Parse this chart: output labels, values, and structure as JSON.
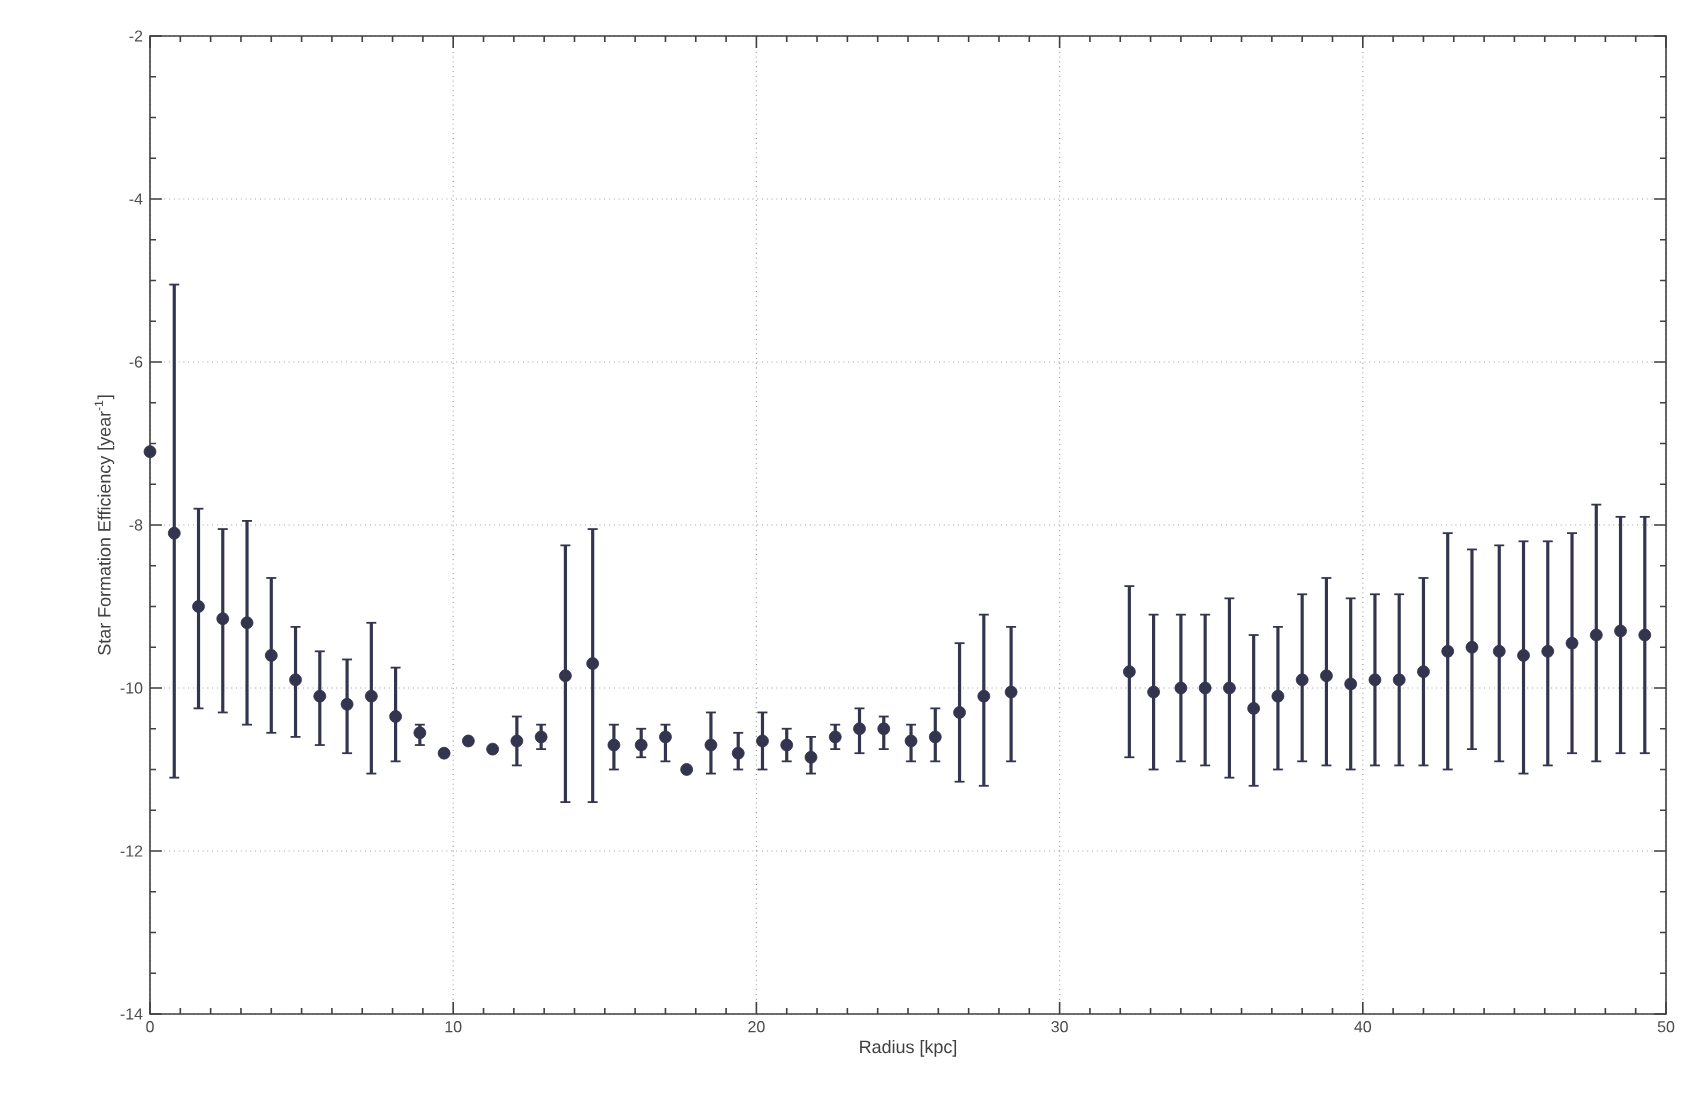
{
  "chart_data": {
    "type": "scatter",
    "xlabel": "Radius   [kpc]",
    "ylabel": "Star Formation Efficiency   [year$^{-1}$]",
    "xlim": [
      0,
      50
    ],
    "xticks": [
      0,
      10,
      20,
      30,
      40,
      50
    ],
    "ylim": [
      -14,
      -2
    ],
    "yticks": [
      -14,
      -12,
      -10,
      -8,
      -6,
      -4,
      -2
    ],
    "grid": true,
    "marker": "circle",
    "series": [
      {
        "color": "#33354f",
        "x": [
          0.0,
          0.8,
          1.6,
          2.4,
          3.2,
          4.0,
          4.8,
          5.6,
          6.5,
          7.3,
          8.1,
          8.9,
          9.7,
          10.5,
          11.3,
          12.1,
          12.9,
          13.7,
          14.6,
          15.3,
          16.2,
          17.0,
          17.7,
          18.5,
          19.4,
          20.2,
          21.0,
          21.8,
          22.6,
          23.4,
          24.2,
          25.1,
          25.9,
          26.7,
          27.5,
          28.4,
          32.3,
          33.1,
          34.0,
          34.8,
          35.6,
          36.4,
          37.2,
          38.0,
          38.8,
          39.6,
          40.4,
          41.2,
          42.0,
          42.8,
          43.6,
          44.5,
          45.3,
          46.1,
          46.9,
          47.7,
          48.5,
          49.3
        ],
        "values": [
          -7.1,
          -8.1,
          -9.0,
          -9.15,
          -9.2,
          -9.6,
          -9.9,
          -10.1,
          -10.2,
          -10.1,
          -10.35,
          -10.55,
          -10.8,
          -10.65,
          -10.75,
          -10.65,
          -10.6,
          -9.85,
          -9.7,
          -10.7,
          -10.7,
          -10.6,
          -11.0,
          -10.7,
          -10.8,
          -10.65,
          -10.7,
          -10.85,
          -10.6,
          -10.5,
          -10.5,
          -10.65,
          -10.6,
          -10.3,
          -10.1,
          -10.05,
          -9.8,
          -10.05,
          -10.0,
          -10.0,
          -10.0,
          -10.25,
          -10.1,
          -9.9,
          -9.85,
          -9.95,
          -9.9,
          -9.9,
          -9.8,
          -9.55,
          -9.5,
          -9.55,
          -9.6,
          -9.55,
          -9.45,
          -9.35,
          -9.3,
          -9.35
        ],
        "errors": [
          null,
          [
            -11.1,
            -5.05
          ],
          [
            -10.25,
            -7.8
          ],
          [
            -10.3,
            -8.05
          ],
          [
            -10.45,
            -7.95
          ],
          [
            -10.55,
            -8.65
          ],
          [
            -10.6,
            -9.25
          ],
          [
            -10.7,
            -9.55
          ],
          [
            -10.8,
            -9.65
          ],
          [
            -11.05,
            -9.2
          ],
          [
            -10.9,
            -9.75
          ],
          [
            -10.7,
            -10.45
          ],
          null,
          null,
          null,
          [
            -10.95,
            -10.35
          ],
          [
            -10.75,
            -10.45
          ],
          [
            -11.4,
            -8.25
          ],
          [
            -11.4,
            -8.05
          ],
          [
            -11.0,
            -10.45
          ],
          [
            -10.85,
            -10.5
          ],
          [
            -10.9,
            -10.45
          ],
          null,
          [
            -11.05,
            -10.3
          ],
          [
            -11.0,
            -10.55
          ],
          [
            -11.0,
            -10.3
          ],
          [
            -10.9,
            -10.5
          ],
          [
            -11.05,
            -10.6
          ],
          [
            -10.75,
            -10.45
          ],
          [
            -10.8,
            -10.25
          ],
          [
            -10.75,
            -10.35
          ],
          [
            -10.9,
            -10.45
          ],
          [
            -10.9,
            -10.25
          ],
          [
            -11.15,
            -9.45
          ],
          [
            -11.2,
            -9.1
          ],
          [
            -10.9,
            -9.25
          ],
          [
            -10.85,
            -8.75
          ],
          [
            -11.0,
            -9.1
          ],
          [
            -10.9,
            -9.1
          ],
          [
            -10.95,
            -9.1
          ],
          [
            -11.1,
            -8.9
          ],
          [
            -11.2,
            -9.35
          ],
          [
            -11.0,
            -9.25
          ],
          [
            -10.9,
            -8.85
          ],
          [
            -10.95,
            -8.65
          ],
          [
            -11.0,
            -8.9
          ],
          [
            -10.95,
            -8.85
          ],
          [
            -10.95,
            -8.85
          ],
          [
            -10.95,
            -8.65
          ],
          [
            -11.0,
            -8.1
          ],
          [
            -10.75,
            -8.3
          ],
          [
            -10.9,
            -8.25
          ],
          [
            -11.05,
            -8.2
          ],
          [
            -10.95,
            -8.2
          ],
          [
            -10.8,
            -8.1
          ],
          [
            -10.9,
            -7.75
          ],
          [
            -10.8,
            -7.9
          ],
          [
            -10.8,
            -7.9
          ]
        ]
      }
    ]
  }
}
